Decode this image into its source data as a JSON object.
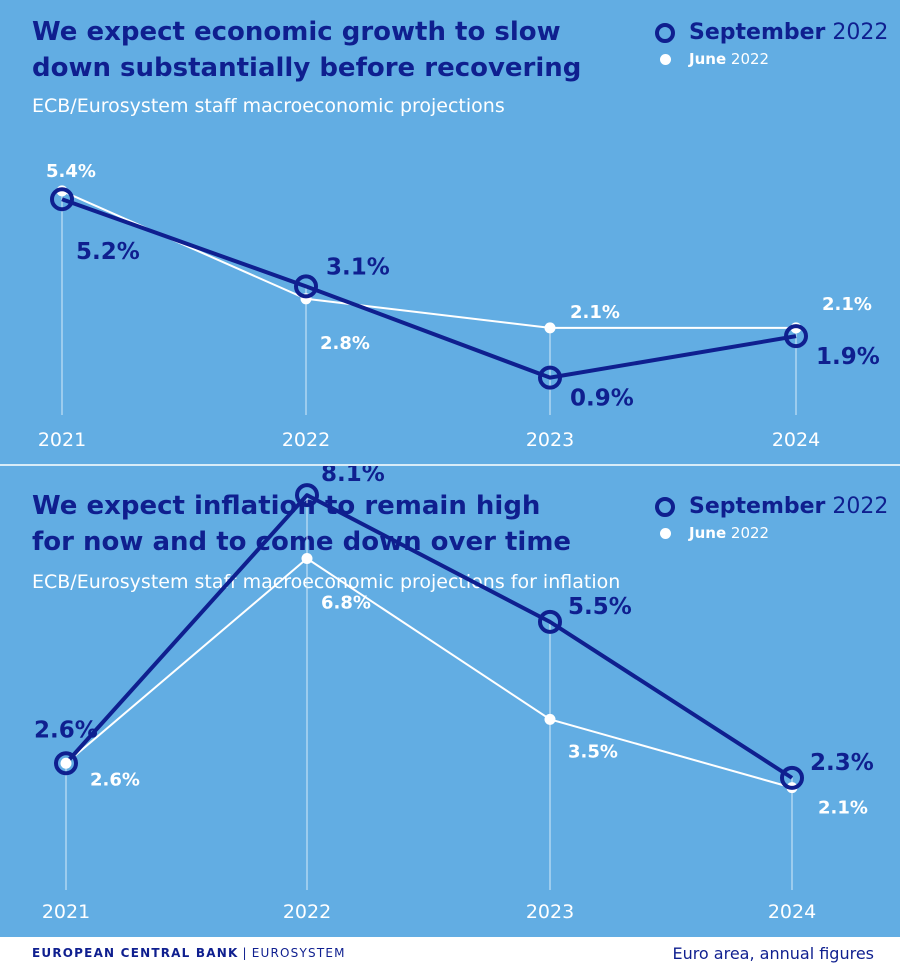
{
  "colors": {
    "background": "#62ade3",
    "september": "#0f1f8f",
    "june": "#ffffff"
  },
  "chart_data": [
    {
      "type": "line",
      "title": "We expect economic growth to slow\ndown substantially before recovering",
      "subtitle": "ECB/Eurosystem staff macroeconomic projections",
      "categories": [
        "2021",
        "2022",
        "2023",
        "2024"
      ],
      "series": [
        {
          "name": "September",
          "name_suffix": "2022",
          "values": [
            5.2,
            3.1,
            0.9,
            1.9
          ],
          "labels": [
            "5.2%",
            "3.1%",
            "0.9%",
            "1.9%"
          ]
        },
        {
          "name": "June",
          "name_suffix": "2022",
          "values": [
            5.4,
            2.8,
            2.1,
            2.1
          ],
          "labels": [
            "5.4%",
            "2.8%",
            "2.1%",
            "2.1%"
          ]
        }
      ],
      "ylim": [
        0,
        6
      ],
      "legend": "top-right",
      "grid": false
    },
    {
      "type": "line",
      "title": "We expect inflation to remain high\nfor now and to come down over time",
      "subtitle": "ECB/Eurosystem staff macroeconomic projections for inflation",
      "categories": [
        "2021",
        "2022",
        "2023",
        "2024"
      ],
      "series": [
        {
          "name": "September",
          "name_suffix": "2022",
          "values": [
            2.6,
            8.1,
            5.5,
            2.3
          ],
          "labels": [
            "2.6%",
            "8.1%",
            "5.5%",
            "2.3%"
          ]
        },
        {
          "name": "June",
          "name_suffix": "2022",
          "values": [
            2.6,
            6.8,
            3.5,
            2.1
          ],
          "labels": [
            "2.6%",
            "6.8%",
            "3.5%",
            "2.1%"
          ]
        }
      ],
      "ylim": [
        0,
        9
      ],
      "legend": "top-right",
      "grid": false
    }
  ],
  "footer": {
    "brand": "EUROPEAN CENTRAL BANK",
    "separator": "|",
    "brand_sub": "EUROSYSTEM",
    "note": "Euro area, annual figures"
  }
}
